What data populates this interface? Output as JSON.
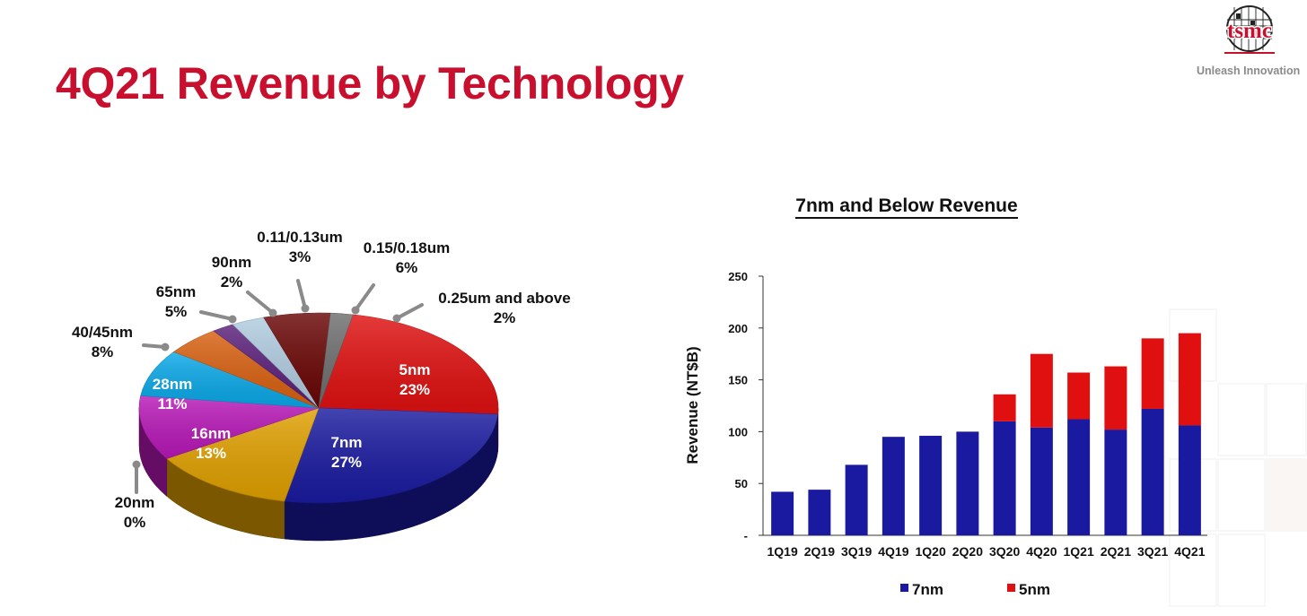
{
  "title": "4Q21 Revenue by Technology",
  "logo": {
    "wordmark": "tsmc",
    "tagline": "Unleash Innovation"
  },
  "colors": {
    "brand_red": "#c8102e",
    "s_5nm": "#e01010",
    "s_7nm": "#1a1aa0",
    "s_16nm": "#e0a000",
    "s_20nm": "#d04000",
    "s_28nm": "#b818b8",
    "s_40_45nm": "#0aa8e8",
    "s_65nm": "#d86010",
    "s_90nm": "#5a1f7a",
    "s_011_013um": "#b0cce0",
    "s_015_018um": "#6a0505",
    "s_025um": "#6e6e6e"
  },
  "chart_data": [
    {
      "type": "pie",
      "slices": [
        {
          "name": "5nm",
          "value": 23,
          "label": "23%"
        },
        {
          "name": "7nm",
          "value": 27,
          "label": "27%"
        },
        {
          "name": "16nm",
          "value": 13,
          "label": "13%"
        },
        {
          "name": "20nm",
          "value": 0,
          "label": "0%"
        },
        {
          "name": "28nm",
          "value": 11,
          "label": "11%"
        },
        {
          "name": "40/45nm",
          "value": 8,
          "label": "8%"
        },
        {
          "name": "65nm",
          "value": 5,
          "label": "5%"
        },
        {
          "name": "90nm",
          "value": 2,
          "label": "2%"
        },
        {
          "name": "0.11/0.13um",
          "value": 3,
          "label": "3%"
        },
        {
          "name": "0.15/0.18um",
          "value": 6,
          "label": "6%"
        },
        {
          "name": "0.25um and above",
          "value": 2,
          "label": "2%"
        }
      ]
    },
    {
      "type": "bar",
      "stacked": true,
      "title": "7nm and Below Revenue",
      "ylabel": "Revenue (NT$B)",
      "ylim": [
        0,
        250
      ],
      "yticks": [
        "-",
        "50",
        "100",
        "150",
        "200",
        "250"
      ],
      "categories": [
        "1Q19",
        "2Q19",
        "3Q19",
        "4Q19",
        "1Q20",
        "2Q20",
        "3Q20",
        "4Q20",
        "1Q21",
        "2Q21",
        "3Q21",
        "4Q21"
      ],
      "series": [
        {
          "name": "7nm",
          "values": [
            42,
            44,
            68,
            95,
            96,
            100,
            110,
            104,
            112,
            102,
            122,
            106
          ]
        },
        {
          "name": "5nm",
          "values": [
            0,
            0,
            0,
            0,
            0,
            0,
            26,
            71,
            45,
            61,
            68,
            89
          ]
        }
      ],
      "legend": "bottom"
    }
  ]
}
